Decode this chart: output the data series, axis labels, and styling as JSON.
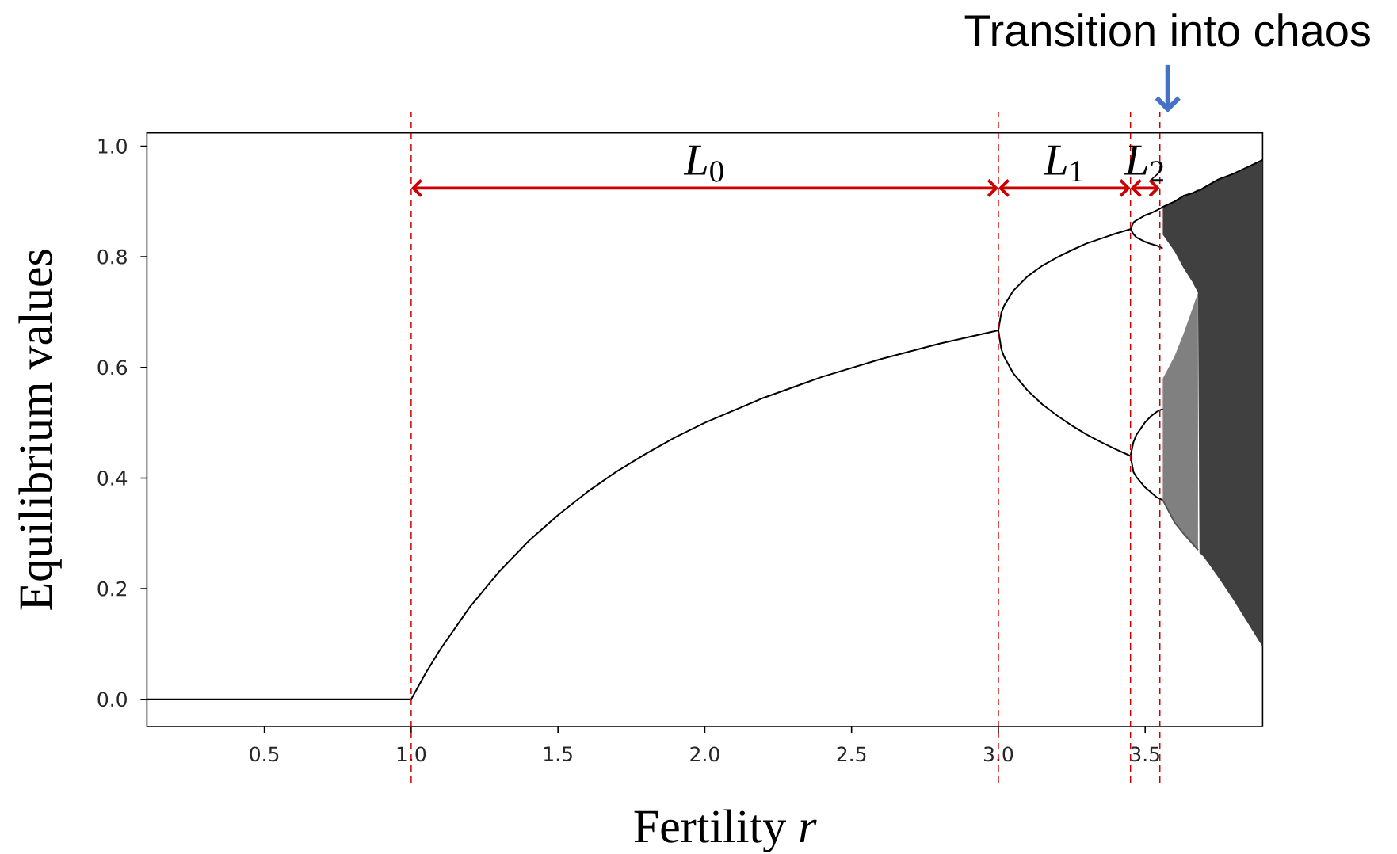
{
  "chart_data": {
    "type": "line",
    "xlabel": "Fertility *r*",
    "ylabel": "Equilibrium values",
    "xlim": [
      0.1,
      3.9
    ],
    "ylim": [
      -0.049,
      1.024
    ],
    "xticks": [
      0.5,
      {
        "value": 1,
        "label": "1.0"
      },
      1.5,
      {
        "value": 2,
        "label": "2.0"
      },
      2.5,
      {
        "value": 3,
        "label": "3.0"
      },
      3.5
    ],
    "yticks": [
      {
        "value": 0,
        "label": "0.0"
      },
      0.2,
      0.4,
      0.6,
      0.8,
      {
        "value": 1,
        "label": "1.0"
      }
    ],
    "series": [
      {
        "color": "#000000",
        "x": [
          0.1,
          1.0,
          1.05,
          1.1,
          1.2,
          1.3,
          1.4,
          1.5,
          1.6,
          1.7,
          1.8,
          1.9,
          2.0,
          2.2,
          2.4,
          2.6,
          2.8,
          3.0,
          3.01,
          3.02,
          3.05,
          3.1,
          3.15,
          3.2,
          3.25,
          3.3,
          3.35,
          3.4,
          3.45,
          3.46,
          3.47,
          3.5,
          3.52,
          3.54,
          3.56,
          3.6,
          3.63,
          3.66,
          3.68,
          3.685,
          3.7,
          3.75,
          3.8,
          3.9
        ],
        "values": [
          0,
          0,
          0.048,
          0.091,
          0.167,
          0.231,
          0.286,
          0.333,
          0.375,
          0.412,
          0.444,
          0.474,
          0.5,
          0.545,
          0.583,
          0.615,
          0.643,
          0.667,
          0.699,
          0.712,
          0.738,
          0.765,
          0.784,
          0.799,
          0.812,
          0.824,
          0.833,
          0.842,
          0.85,
          0.862,
          0.866,
          0.875,
          0.879,
          0.884,
          0.89,
          0.9,
          0.91,
          0.915,
          0.92,
          0.92,
          0.925,
          0.94,
          0.95,
          0.975
        ],
        "lower": [
          null,
          null,
          null,
          null,
          null,
          null,
          null,
          null,
          null,
          null,
          null,
          null,
          null,
          null,
          null,
          null,
          null,
          null,
          null,
          null,
          null,
          null,
          null,
          null,
          null,
          null,
          null,
          null,
          null,
          null,
          null,
          null,
          null,
          null,
          0.84,
          0.81,
          0.78,
          0.755,
          0.735,
          0.265,
          0.257,
          0.22,
          0.18,
          0.095
        ],
        "upper": [
          null,
          null,
          null,
          null,
          null,
          null,
          null,
          null,
          null,
          null,
          null,
          null,
          null,
          null,
          null,
          null,
          null,
          null,
          null,
          null,
          null,
          null,
          null,
          null,
          null,
          null,
          null,
          null,
          null,
          null,
          null,
          null,
          null,
          null,
          0.89,
          0.9,
          0.91,
          0.915,
          0.92,
          0.92,
          0.925,
          0.94,
          0.95,
          0.975
        ]
      },
      {
        "color": "#000000",
        "x": [
          3.0,
          3.01,
          3.02,
          3.05,
          3.1,
          3.15,
          3.2,
          3.25,
          3.3,
          3.35,
          3.4,
          3.45,
          3.46,
          3.47,
          3.5,
          3.52,
          3.54,
          3.56
        ],
        "values": [
          0.667,
          0.633,
          0.619,
          0.59,
          0.558,
          0.533,
          0.513,
          0.495,
          0.479,
          0.465,
          0.452,
          0.44,
          0.411,
          0.402,
          0.383,
          0.374,
          0.365,
          0.36
        ]
      },
      {
        "color": "#000000",
        "x": [
          3.45,
          3.46,
          3.47,
          3.5,
          3.52,
          3.54,
          3.56
        ],
        "values": [
          0.85,
          0.841,
          0.835,
          0.827,
          0.823,
          0.82,
          0.815
        ]
      },
      {
        "color": "#000000",
        "x": [
          3.45,
          3.46,
          3.47,
          3.5,
          3.52,
          3.54,
          3.56
        ],
        "values": [
          0.44,
          0.465,
          0.478,
          0.501,
          0.512,
          0.52,
          0.525
        ]
      },
      {
        "color": "#555555",
        "x": [
          3.56,
          3.6,
          3.63,
          3.68
        ],
        "values": [
          0.36,
          0.32,
          0.3,
          0.27
        ],
        "lower": [
          0.36,
          0.32,
          0.3,
          0.27
        ],
        "upper": [
          0.58,
          0.62,
          0.66,
          0.735
        ]
      }
    ],
    "ref_lines": [
      {
        "axis": "x",
        "value": 1,
        "color": "#cc0000",
        "line_style": "dashed"
      },
      {
        "axis": "x",
        "value": 3,
        "color": "#cc0000",
        "line_style": "dashed"
      },
      {
        "axis": "x",
        "value": 3.45,
        "color": "#cc0000",
        "line_style": "dashed"
      },
      {
        "axis": "x",
        "value": 3.55,
        "color": "#cc0000",
        "line_style": "dashed"
      }
    ],
    "annotations": [
      "*L*$_{0}$",
      "*L*$_{1}$",
      "*L*$_{2}$",
      "Transition into chaos"
    ]
  }
}
